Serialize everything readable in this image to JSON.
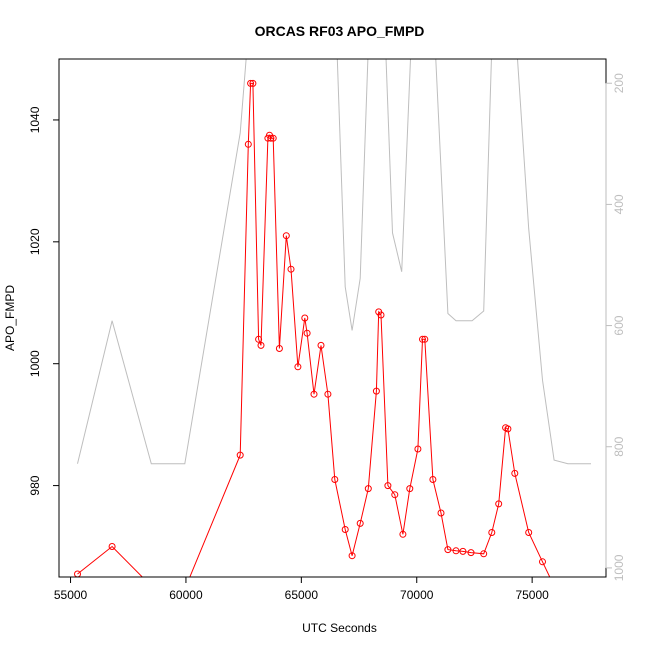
{
  "chart_data": {
    "type": "line",
    "title": "ORCAS RF03 APO_FMPD",
    "xlabel": "UTC Seconds",
    "ylabel": "APO_FMPD",
    "xlim": [
      54500,
      78200
    ],
    "ylim": [
      965,
      1050
    ],
    "x_ticks": [
      55000,
      60000,
      65000,
      70000,
      75000
    ],
    "x_tick_labels": [
      "55000",
      "60000",
      "65000",
      "70000",
      "75000"
    ],
    "y_ticks": [
      980,
      1000,
      1020,
      1040
    ],
    "y_tick_labels": [
      "980",
      "1000",
      "1020",
      "1040"
    ],
    "grid": false,
    "colors": {
      "primary": "#ff0000",
      "secondary": "#bebebe",
      "axis": "#000000"
    },
    "series": [
      {
        "color": "#ff0000",
        "marker": "open-circle",
        "x": [
          55300,
          56800,
          58500,
          59950,
          62350,
          62700,
          62800,
          62900,
          63150,
          63250,
          63550,
          63620,
          63680,
          63780,
          64050,
          64350,
          64550,
          64850,
          65150,
          65250,
          65550,
          65850,
          66150,
          66450,
          66900,
          67200,
          67550,
          67900,
          68250,
          68350,
          68450,
          68750,
          69050,
          69400,
          69700,
          70050,
          70250,
          70350,
          70700,
          71050,
          71350,
          71700,
          72000,
          72350,
          72900,
          73250,
          73550,
          73850,
          73950,
          74250,
          74850,
          75450,
          75950,
          76500,
          77050,
          77550
        ],
        "y": [
          965.5,
          970,
          963.5,
          963,
          985,
          1036,
          1046,
          1046,
          1004,
          1003,
          1037,
          1037.5,
          1037,
          1037,
          1002.5,
          1021,
          1015.5,
          999.5,
          1007.5,
          1005,
          995,
          1003,
          995,
          981,
          972.8,
          968.5,
          973.8,
          979.5,
          995.5,
          1008.5,
          1008,
          980,
          978.5,
          972,
          979.5,
          986,
          1004,
          1004,
          981,
          975.5,
          969.5,
          969.3,
          969.2,
          969,
          968.8,
          972.3,
          977,
          989.5,
          989.3,
          982,
          972.3,
          967.5,
          963.5,
          963.5,
          963.8,
          964.3
        ]
      },
      {
        "color": "#bebebe",
        "axis": "right",
        "ylim": [
          1015,
          160
        ],
        "y_ticks": [
          200,
          400,
          600,
          800,
          1000
        ],
        "y_tick_labels": [
          "200",
          "400",
          "600",
          "800",
          "1000"
        ],
        "x": [
          55300,
          56800,
          58500,
          59950,
          62350,
          62650,
          62800,
          63050,
          63250,
          63450,
          63600,
          63800,
          64050,
          64300,
          64550,
          64900,
          65250,
          65550,
          65800,
          66150,
          66550,
          66900,
          67200,
          67550,
          67900,
          68250,
          68650,
          68950,
          69350,
          69750,
          70100,
          70450,
          70800,
          71350,
          71700,
          72050,
          72400,
          72900,
          73250,
          73550,
          73850,
          74350,
          74850,
          75450,
          75950,
          76550,
          77050,
          77550
        ],
        "y": [
          828,
          592,
          828,
          828,
          282,
          140,
          140,
          150,
          140,
          140,
          140,
          130,
          140,
          130,
          140,
          130,
          140,
          150,
          140,
          140,
          150,
          536,
          608,
          522,
          140,
          130,
          140,
          447,
          511,
          140,
          140,
          140,
          140,
          580,
          592,
          592,
          592,
          576,
          140,
          140,
          140,
          150,
          440,
          690,
          822,
          828,
          828,
          828
        ]
      }
    ]
  }
}
